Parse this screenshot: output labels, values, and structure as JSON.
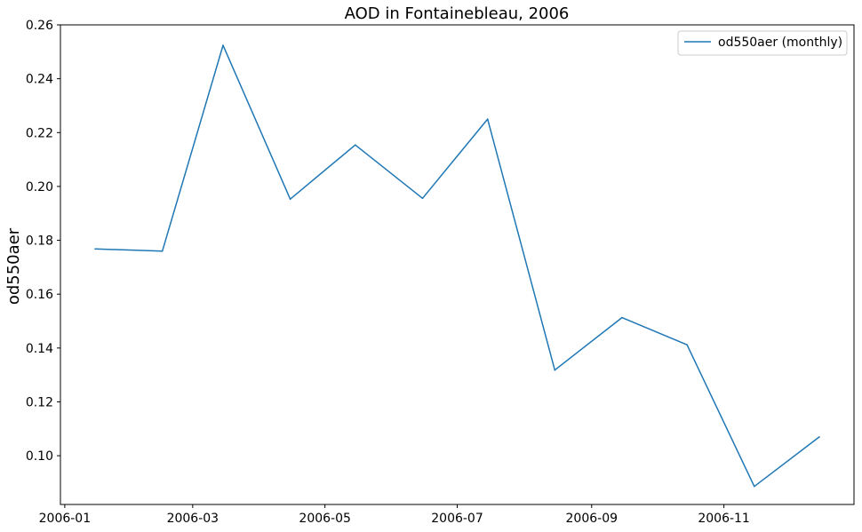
{
  "chart_data": {
    "type": "line",
    "title": "AOD in Fontainebleau, 2006",
    "xlabel": "",
    "ylabel": "od550aer",
    "x": [
      "2006-01-15",
      "2006-02-15",
      "2006-03-15",
      "2006-04-15",
      "2006-05-15",
      "2006-06-15",
      "2006-07-15",
      "2006-08-15",
      "2006-09-15",
      "2006-10-15",
      "2006-11-15",
      "2006-12-15"
    ],
    "series": [
      {
        "name": "od550aer (monthly)",
        "color": "#1f77b4",
        "values": [
          0.1768,
          0.176,
          0.2524,
          0.1953,
          0.2154,
          0.1956,
          0.225,
          0.1318,
          0.1513,
          0.1412,
          0.0886,
          0.107
        ]
      }
    ],
    "xlim": [
      "2005-12-30",
      "2006-12-31"
    ],
    "ylim": [
      0.0819,
      0.26
    ],
    "xticks": [
      "2006-01",
      "2006-03",
      "2006-05",
      "2006-07",
      "2006-09",
      "2006-11"
    ],
    "yticks": [
      "0.10",
      "0.12",
      "0.14",
      "0.16",
      "0.18",
      "0.20",
      "0.22",
      "0.24",
      "0.26"
    ],
    "grid": false,
    "legend_position": "top-right"
  }
}
